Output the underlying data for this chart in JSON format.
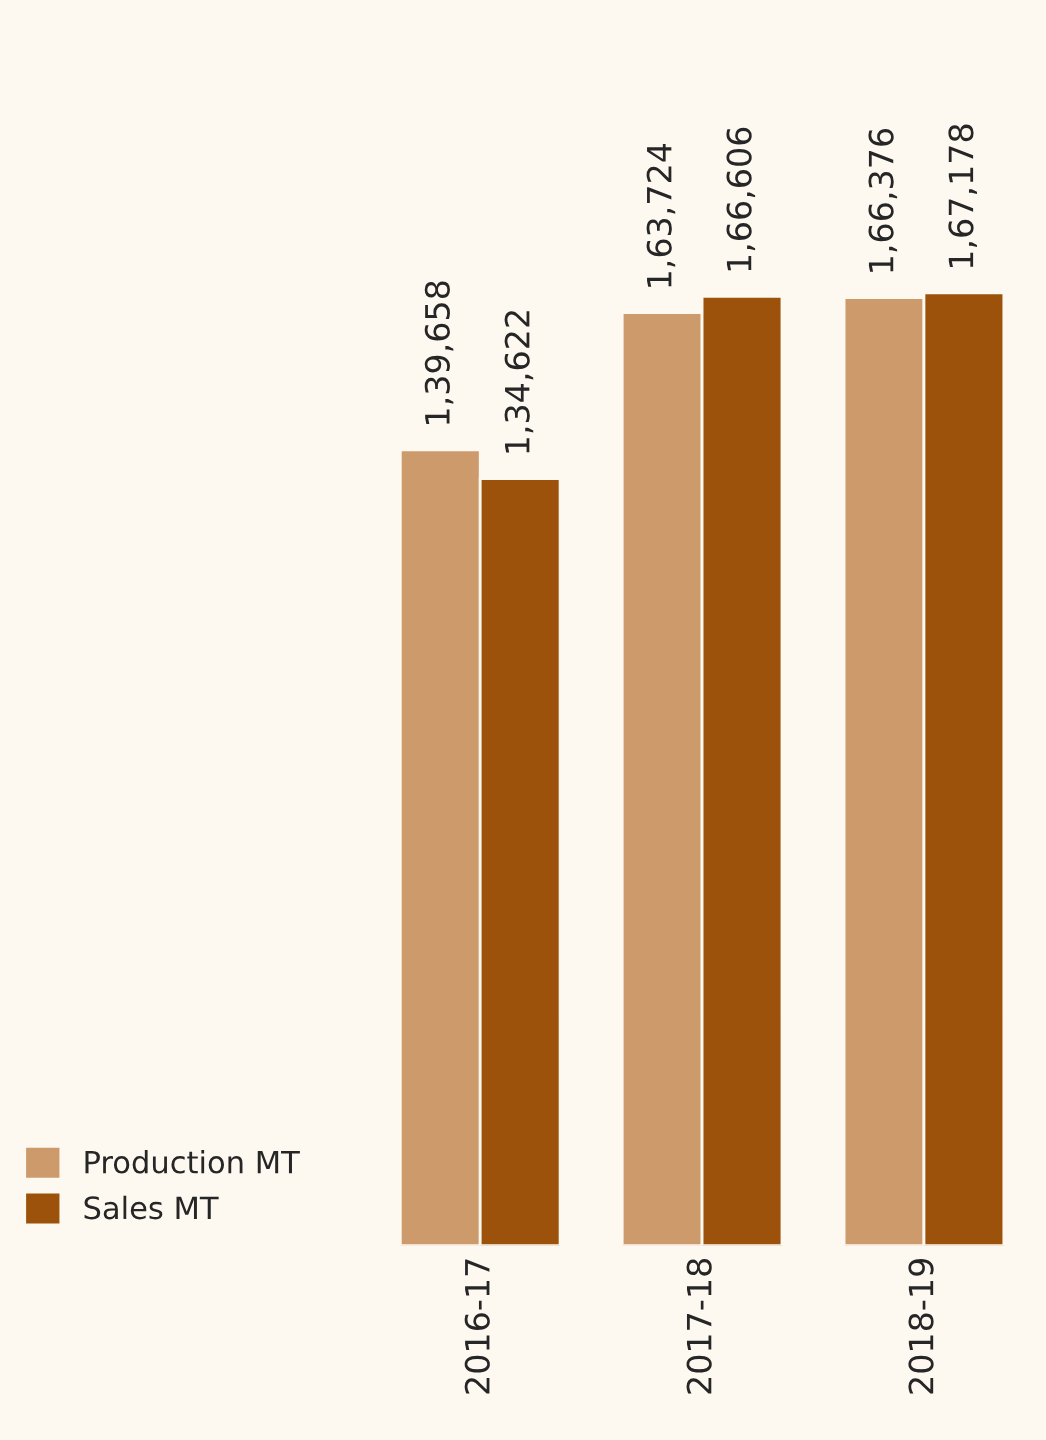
{
  "chart_data": {
    "type": "bar",
    "categories": [
      "2016-17",
      "2017-18",
      "2018-19"
    ],
    "series": [
      {
        "name": "Production MT",
        "color": "#cd9a6c",
        "values": [
          139658,
          163724,
          166376
        ],
        "value_labels": [
          "1,39,658",
          "1,63,724",
          "1,66,376"
        ]
      },
      {
        "name": "Sales MT",
        "color": "#9c520a",
        "values": [
          134622,
          166606,
          167178
        ],
        "value_labels": [
          "1,34,622",
          "1,66,606",
          "1,67,178"
        ]
      }
    ],
    "legend": "bottom left",
    "grid": false
  }
}
